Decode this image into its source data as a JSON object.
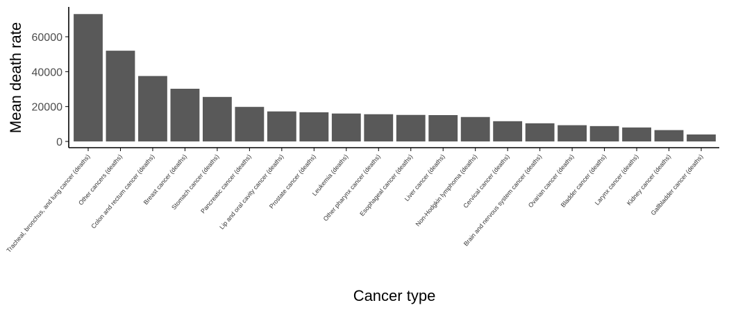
{
  "chart_data": {
    "type": "bar",
    "title": "",
    "xlabel": "Cancer type",
    "ylabel": "Mean death rate",
    "ylim": [
      0,
      75000
    ],
    "yticks": [
      0,
      20000,
      40000,
      60000
    ],
    "ytick_labels": [
      "0",
      "20000",
      "40000",
      "60000"
    ],
    "grid": false,
    "legend": "none",
    "bar_color": "#595959",
    "categories": [
      "Tracheal, bronchus, and lung cancer (deaths)",
      "Other cancers (deaths)",
      "Colon and rectum cancer (deaths)",
      "Breast cancer (deaths)",
      "Stomach cancer (deaths)",
      "Pancreatic cancer (deaths)",
      "Lip and oral cavity cancer (deaths)",
      "Prostate cancer (deaths)",
      "Leukemia (deaths)",
      "Other pharynx cancer (deaths)",
      "Esophageal cancer (deaths)",
      "Liver cancer (deaths)",
      "Non-Hodgkin lymphoma (deaths)",
      "Cervical cancer (deaths)",
      "Brain and nervous system cancer (deaths)",
      "Ovarian cancer (deaths)",
      "Bladder cancer (deaths)",
      "Larynx cancer (deaths)",
      "Kidney cancer (deaths)",
      "Gallbladder cancer (deaths)"
    ],
    "values": [
      73000,
      52000,
      37500,
      30200,
      25500,
      19800,
      17200,
      16700,
      16000,
      15600,
      15200,
      15100,
      14000,
      11600,
      10400,
      9300,
      8800,
      8000,
      6500,
      4000
    ]
  }
}
